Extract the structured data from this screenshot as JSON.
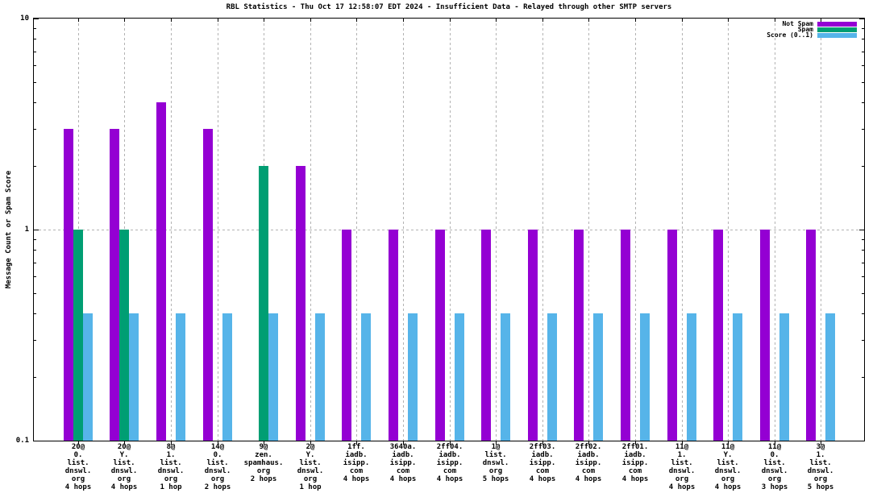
{
  "title": "RBL Statistics - Thu Oct 17 12:58:07 EDT 2024 - Insufficient Data - Relayed through other SMTP servers",
  "chart_data": {
    "type": "bar",
    "title": "RBL Statistics - Thu Oct 17 12:58:07 EDT 2024 - Insufficient Data - Relayed through other SMTP servers",
    "ylabel": "Message Count or Spam Score",
    "xlabel": "",
    "yscale": "log",
    "ylim": [
      0.1,
      10
    ],
    "yticks": [
      {
        "value": 10,
        "label": "10"
      },
      {
        "value": 1,
        "label": "1"
      },
      {
        "value": 0.1,
        "label": "0.1"
      }
    ],
    "grid": {
      "style": "dotted",
      "y_values": [
        1
      ],
      "x_at_category_centers": true
    },
    "legend_position": "top-right-inside",
    "background": "#ffffff",
    "axis_color": "#000000",
    "grid_color": "#b3b3b3",
    "categories": [
      "20@0.list.dnswl.org 4 hops",
      "20@Y.list.dnswl.org 4 hops",
      "8@1.list.dnswl.org 1 hop",
      "14@0.list.dnswl.org 2 hops",
      "9@zen.spamhaus.org 2 hops",
      "2@Y.list.dnswl.org 1 hop",
      "1ff.iadb.isipp.com 4 hops",
      "3640a.iadb.isipp.com 4 hops",
      "2ff04.iadb.isipp.com 4 hops",
      "1@list.dnswl.org 5 hops",
      "2ff03.iadb.isipp.com 4 hops",
      "2ff02.iadb.isipp.com 4 hops",
      "2ff01.iadb.isipp.com 4 hops",
      "11@1.list.dnswl.org 4 hops",
      "11@Y.list.dnswl.org 4 hops",
      "11@0.list.dnswl.org 3 hops",
      "3@1.list.dnswl.org 5 hops"
    ],
    "category_label_lines": [
      [
        "20@",
        "0.",
        "list.",
        "dnswl.",
        "org",
        "4 hops"
      ],
      [
        "20@",
        "Y.",
        "list.",
        "dnswl.",
        "org",
        "4 hops"
      ],
      [
        "8@",
        "1.",
        "list.",
        "dnswl.",
        "org",
        "1 hop"
      ],
      [
        "14@",
        "0.",
        "list.",
        "dnswl.",
        "org",
        "2 hops"
      ],
      [
        "9@",
        "zen.",
        "spamhaus.",
        "org",
        "2 hops"
      ],
      [
        "2@",
        "Y.",
        "list.",
        "dnswl.",
        "org",
        "1 hop"
      ],
      [
        "1ff.",
        "iadb.",
        "isipp.",
        "com",
        "4 hops"
      ],
      [
        "3640a.",
        "iadb.",
        "isipp.",
        "com",
        "4 hops"
      ],
      [
        "2ff04.",
        "iadb.",
        "isipp.",
        "com",
        "4 hops"
      ],
      [
        "1@",
        "list.",
        "dnswl.",
        "org",
        "5 hops"
      ],
      [
        "2ff03.",
        "iadb.",
        "isipp.",
        "com",
        "4 hops"
      ],
      [
        "2ff02.",
        "iadb.",
        "isipp.",
        "com",
        "4 hops"
      ],
      [
        "2ff01.",
        "iadb.",
        "isipp.",
        "com",
        "4 hops"
      ],
      [
        "11@",
        "1.",
        "list.",
        "dnswl.",
        "org",
        "4 hops"
      ],
      [
        "11@",
        "Y.",
        "list.",
        "dnswl.",
        "org",
        "4 hops"
      ],
      [
        "11@",
        "0.",
        "list.",
        "dnswl.",
        "org",
        "3 hops"
      ],
      [
        "3@",
        "1.",
        "list.",
        "dnswl.",
        "org",
        "5 hops"
      ]
    ],
    "series": [
      {
        "name": "Not Spam",
        "color": "#9400d3",
        "values": [
          3,
          3,
          4,
          3,
          null,
          2,
          1,
          1,
          1,
          1,
          1,
          1,
          1,
          1,
          1,
          1,
          1
        ]
      },
      {
        "name": "Spam",
        "color": "#009e73",
        "values": [
          1,
          1,
          null,
          null,
          2,
          null,
          null,
          null,
          null,
          null,
          null,
          null,
          null,
          null,
          null,
          null,
          null
        ]
      },
      {
        "name": "Score (0..1)",
        "color": "#56b4e9",
        "values": [
          0.4,
          0.4,
          0.4,
          0.4,
          0.4,
          0.4,
          0.4,
          0.4,
          0.4,
          0.4,
          0.4,
          0.4,
          0.4,
          0.4,
          0.4,
          0.4,
          0.4
        ]
      }
    ]
  }
}
